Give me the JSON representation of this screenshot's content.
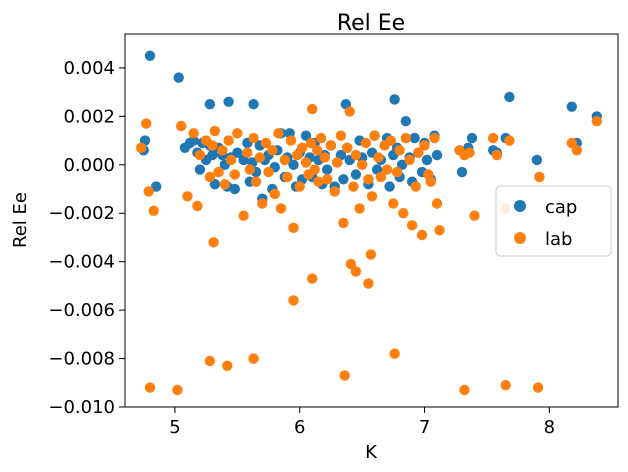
{
  "chart_data": {
    "type": "scatter",
    "title": "Rel Ee",
    "xlabel": "K",
    "ylabel": "Rel Ee",
    "xlim": [
      4.6,
      8.55
    ],
    "ylim": [
      -0.01,
      0.0054
    ],
    "xticks": [
      5,
      6,
      7,
      8
    ],
    "xtick_labels": [
      "5",
      "6",
      "7",
      "8"
    ],
    "yticks": [
      -0.01,
      -0.008,
      -0.006,
      -0.004,
      -0.002,
      0.0,
      0.002,
      0.004
    ],
    "ytick_labels": [
      "−0.010",
      "−0.008",
      "−0.006",
      "−0.004",
      "−0.002",
      "0.000",
      "0.002",
      "0.004"
    ],
    "grid": false,
    "legend": {
      "position": "center-right"
    },
    "series": [
      {
        "name": "cap",
        "color": "#1f77b4",
        "x": [
          4.75,
          4.76,
          4.8,
          4.85,
          5.03,
          5.08,
          5.12,
          5.15,
          5.18,
          5.2,
          5.22,
          5.25,
          5.28,
          5.3,
          5.32,
          5.35,
          5.38,
          5.4,
          5.42,
          5.45,
          5.48,
          5.5,
          5.55,
          5.58,
          5.6,
          5.62,
          5.65,
          5.68,
          5.7,
          5.72,
          5.75,
          5.78,
          5.8,
          5.82,
          5.85,
          5.88,
          5.9,
          5.92,
          5.95,
          5.97,
          6.0,
          6.02,
          6.05,
          6.08,
          6.1,
          6.12,
          6.15,
          6.18,
          6.2,
          6.22,
          6.25,
          6.28,
          6.3,
          6.33,
          6.35,
          6.38,
          6.4,
          6.45,
          6.48,
          6.5,
          6.55,
          6.58,
          6.6,
          6.62,
          6.65,
          6.7,
          6.72,
          6.75,
          6.78,
          6.8,
          6.82,
          6.85,
          6.88,
          6.9,
          6.92,
          6.95,
          6.98,
          7.0,
          7.02,
          7.05,
          7.08,
          7.1,
          7.3,
          7.35,
          7.38,
          7.55,
          7.58,
          7.65,
          7.68,
          7.9,
          8.18,
          8.22,
          8.38,
          5.28,
          5.43,
          5.63,
          6.37,
          6.76
        ],
        "y": [
          0.0006,
          0.001,
          0.0045,
          -0.0009,
          0.0036,
          0.0007,
          0.0009,
          0.001,
          0.0005,
          -0.0002,
          0.0009,
          0.0002,
          0.0008,
          0.0004,
          -0.0008,
          0.0007,
          0.0004,
          0.0,
          -0.0009,
          0.0003,
          -0.001,
          0.0005,
          0.0002,
          0.0009,
          -0.0007,
          0.0001,
          -0.0003,
          0.0008,
          -0.0014,
          0.0002,
          0.0004,
          -0.001,
          -0.0001,
          0.0006,
          0.0013,
          -0.0005,
          0.0003,
          0.0013,
          0.0,
          -0.0009,
          0.0005,
          -0.0006,
          0.0012,
          0.0003,
          -0.0005,
          0.0009,
          0.0002,
          -0.0008,
          0.0004,
          -0.0002,
          0.0008,
          -0.0009,
          0.0001,
          0.0004,
          -0.0006,
          0.0007,
          0.0002,
          -0.0004,
          0.001,
          0.0003,
          -0.0008,
          0.0005,
          0.0012,
          -0.0002,
          0.0002,
          0.0011,
          -0.0009,
          0.0004,
          0.0007,
          -0.0005,
          0.0,
          0.0018,
          0.0003,
          -0.0007,
          0.0011,
          0.0005,
          -0.0003,
          0.0009,
          0.0002,
          -0.0006,
          0.0012,
          0.0004,
          -0.0003,
          0.0007,
          0.0011,
          0.0006,
          0.0005,
          0.0011,
          0.0028,
          0.0002,
          0.0024,
          0.0009,
          0.002,
          0.0025,
          0.0026,
          0.0025,
          0.0025,
          0.0027
        ]
      },
      {
        "name": "lab",
        "color": "#ff7f0e",
        "x": [
          4.73,
          4.77,
          4.79,
          4.83,
          5.05,
          5.1,
          5.15,
          5.18,
          5.2,
          5.25,
          5.28,
          5.3,
          5.32,
          5.35,
          5.38,
          5.4,
          5.43,
          5.45,
          5.48,
          5.5,
          5.55,
          5.58,
          5.6,
          5.63,
          5.65,
          5.68,
          5.7,
          5.73,
          5.75,
          5.78,
          5.8,
          5.83,
          5.85,
          5.88,
          5.9,
          5.93,
          5.95,
          5.98,
          6.0,
          6.02,
          6.05,
          6.07,
          6.09,
          6.1,
          6.12,
          6.14,
          6.15,
          6.17,
          6.2,
          6.22,
          6.25,
          6.28,
          6.3,
          6.33,
          6.35,
          6.38,
          6.4,
          6.43,
          6.45,
          6.48,
          6.5,
          6.53,
          6.55,
          6.58,
          6.6,
          6.63,
          6.65,
          6.68,
          6.7,
          6.73,
          6.75,
          6.78,
          6.8,
          6.83,
          6.85,
          6.88,
          6.9,
          6.93,
          6.95,
          6.98,
          7.0,
          7.03,
          7.05,
          7.08,
          7.1,
          7.12,
          7.28,
          7.32,
          7.36,
          7.4,
          7.55,
          7.58,
          7.65,
          7.68,
          7.92,
          8.18,
          8.22,
          8.38,
          4.8,
          5.02,
          5.28,
          5.42,
          5.63,
          6.36,
          6.76,
          7.32,
          7.65,
          7.91,
          5.95,
          6.1,
          6.45,
          6.55,
          5.31,
          6.41,
          6.57
        ],
        "y": [
          0.0007,
          0.0017,
          -0.0011,
          -0.0019,
          0.0016,
          -0.0013,
          0.0013,
          -0.0017,
          0.0004,
          0.001,
          -0.0005,
          0.0008,
          0.0014,
          -0.0003,
          0.0006,
          -0.0008,
          0.001,
          0.0002,
          -0.0004,
          0.0013,
          -0.0021,
          0.0005,
          -0.0002,
          0.0011,
          -0.0007,
          0.0003,
          -0.0016,
          0.0009,
          -0.0003,
          0.0006,
          -0.0012,
          0.0013,
          -0.0018,
          0.0002,
          -0.0005,
          0.001,
          -0.0026,
          0.0004,
          -0.0009,
          0.0007,
          0.0001,
          -0.0004,
          0.0009,
          0.0023,
          -0.0002,
          0.0006,
          -0.0007,
          0.0011,
          0.0003,
          -0.0006,
          0.0008,
          -0.0011,
          0.0001,
          0.0012,
          -0.0024,
          0.0007,
          0.0022,
          -0.0009,
          0.0004,
          -0.0018,
          0.0,
          0.0009,
          -0.0006,
          -0.0013,
          0.0012,
          0.0003,
          -0.0005,
          0.0008,
          -0.0002,
          0.001,
          -0.0016,
          -0.0003,
          0.0006,
          -0.002,
          0.0011,
          0.0002,
          -0.0025,
          -0.0009,
          0.0005,
          -0.0029,
          0.0008,
          -0.0004,
          -0.0007,
          0.0011,
          -0.0016,
          -0.0027,
          0.0006,
          0.0004,
          0.0005,
          -0.0021,
          0.0011,
          0.0004,
          -0.0018,
          0.001,
          -0.0005,
          0.0009,
          0.0006,
          0.0018,
          -0.0092,
          -0.0093,
          -0.0081,
          -0.0083,
          -0.008,
          -0.0087,
          -0.0078,
          -0.0093,
          -0.0091,
          -0.0092,
          -0.0056,
          -0.0047,
          -0.0044,
          -0.0049,
          -0.0032,
          -0.0041,
          -0.0037
        ]
      }
    ]
  }
}
